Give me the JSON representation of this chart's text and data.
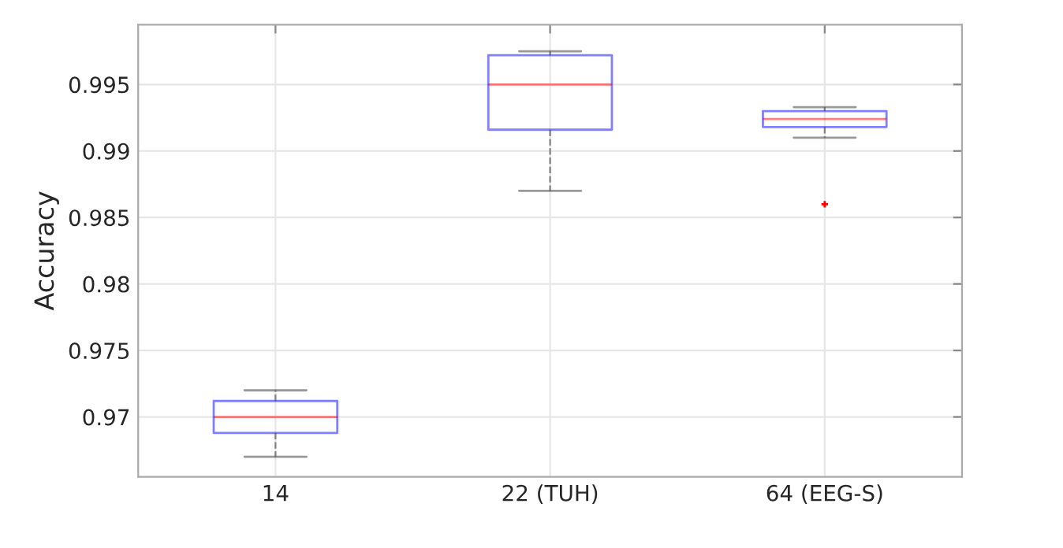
{
  "chart_data": {
    "type": "box",
    "ylabel": "Accuracy",
    "categories": [
      "14",
      "22 (TUH)",
      "64 (EEG-S)"
    ],
    "boxes": [
      {
        "low": 0.967,
        "q1": 0.9688,
        "median": 0.97,
        "q3": 0.9712,
        "high": 0.972
      },
      {
        "low": 0.987,
        "q1": 0.9916,
        "median": 0.995,
        "q3": 0.9972,
        "high": 0.9975
      },
      {
        "low": 0.991,
        "q1": 0.9918,
        "median": 0.9924,
        "q3": 0.993,
        "high": 0.9933,
        "outliers": [
          0.986
        ]
      }
    ],
    "color": "#0000ff",
    "ylim": [
      0.9655,
      0.9995
    ],
    "yticks": [
      0.97,
      0.975,
      0.98,
      0.985,
      0.99,
      0.995
    ],
    "grid": true,
    "marker": "cross"
  }
}
